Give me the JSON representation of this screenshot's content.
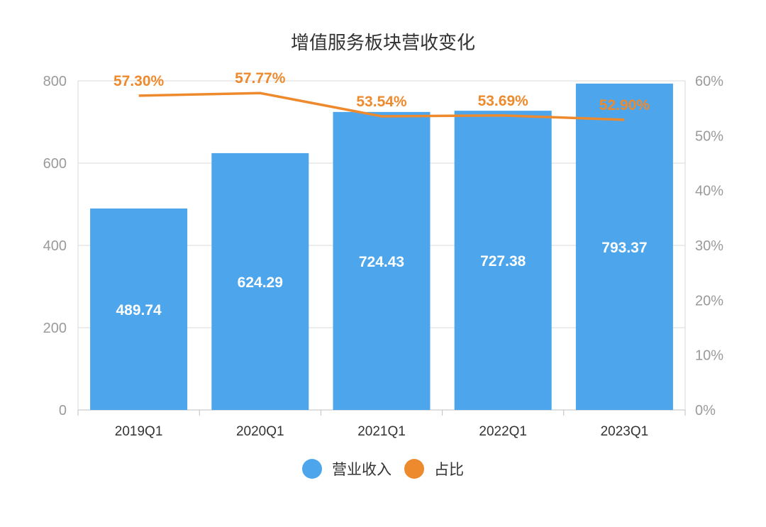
{
  "chart_data": {
    "type": "bar",
    "title": "增值服务板块营收变化",
    "categories": [
      "2019Q1",
      "2020Q1",
      "2021Q1",
      "2022Q1",
      "2023Q1"
    ],
    "series": [
      {
        "name": "营业收入",
        "type": "bar",
        "axis": "left",
        "color": "#4da6ec",
        "values": [
          489.74,
          624.29,
          724.43,
          727.38,
          793.37
        ],
        "labels": [
          "489.74",
          "624.29",
          "724.43",
          "727.38",
          "793.37"
        ]
      },
      {
        "name": "占比",
        "type": "line",
        "axis": "right",
        "color": "#ee8a2e",
        "values": [
          57.3,
          57.77,
          53.54,
          53.69,
          52.9
        ],
        "labels": [
          "57.30%",
          "57.77%",
          "53.54%",
          "53.69%",
          "52.90%"
        ]
      }
    ],
    "y_left": {
      "ylim": [
        0,
        800
      ],
      "ticks": [
        "0",
        "200",
        "400",
        "600",
        "800"
      ]
    },
    "y_right": {
      "ylim": [
        0,
        60
      ],
      "ticks": [
        "0%",
        "10%",
        "20%",
        "30%",
        "40%",
        "50%",
        "60%"
      ]
    },
    "grid": true,
    "legend_position": "bottom"
  }
}
